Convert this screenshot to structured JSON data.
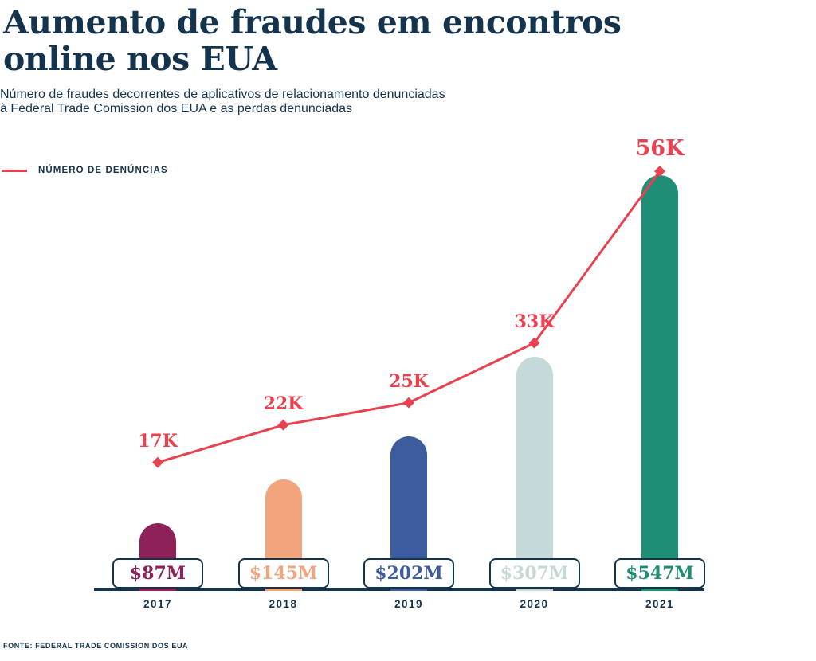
{
  "header": {
    "title_lines": [
      "Aumento de fraudes em encontros",
      "online nos EUA"
    ],
    "subtitle_lines": [
      "Número de fraudes decorrentes de aplicativos de relacionamento denunciadas",
      "à Federal Trade Comission dos EUA e as perdas denunciadas"
    ]
  },
  "legend": {
    "label": "NÚMERO DE DENÚNCIAS",
    "color": "#E8414F"
  },
  "footer": {
    "source": "FONTE: FEDERAL TRADE COMISSION DOS EUA"
  },
  "colors": {
    "navy": "#14334D",
    "red": "#E8414F",
    "background": "#FFFFFF"
  },
  "chart_data": {
    "type": "combo",
    "title": "Aumento de fraudes em encontros online nos EUA",
    "source": "FONTE: FEDERAL TRADE COMISSION DOS EUA",
    "categories": [
      "2017",
      "2018",
      "2019",
      "2020",
      "2021"
    ],
    "grid": false,
    "legend_position": "top-left",
    "series": [
      {
        "name": "Perdas denunciadas",
        "type": "bar",
        "unit": "USD (milhões)",
        "values": [
          87,
          145,
          202,
          307,
          547
        ],
        "labels": [
          "$87M",
          "$145M",
          "$202M",
          "$307M",
          "$547M"
        ],
        "colors": [
          "#8E2158",
          "#F2A47C",
          "#3D5C9E",
          "#C5D8DA",
          "#1F8E77"
        ]
      },
      {
        "name": "NÚMERO DE DENÚNCIAS",
        "type": "line",
        "unit": "denúncias",
        "values": [
          17000,
          22000,
          25000,
          33000,
          56000
        ],
        "labels": [
          "17K",
          "22K",
          "25K",
          "33K",
          "56K"
        ],
        "color": "#E8414F",
        "marker": "diamond"
      }
    ],
    "axis": {
      "x_labels": [
        "2017",
        "2018",
        "2019",
        "2020",
        "2021"
      ],
      "y_axis_visible": false
    }
  }
}
